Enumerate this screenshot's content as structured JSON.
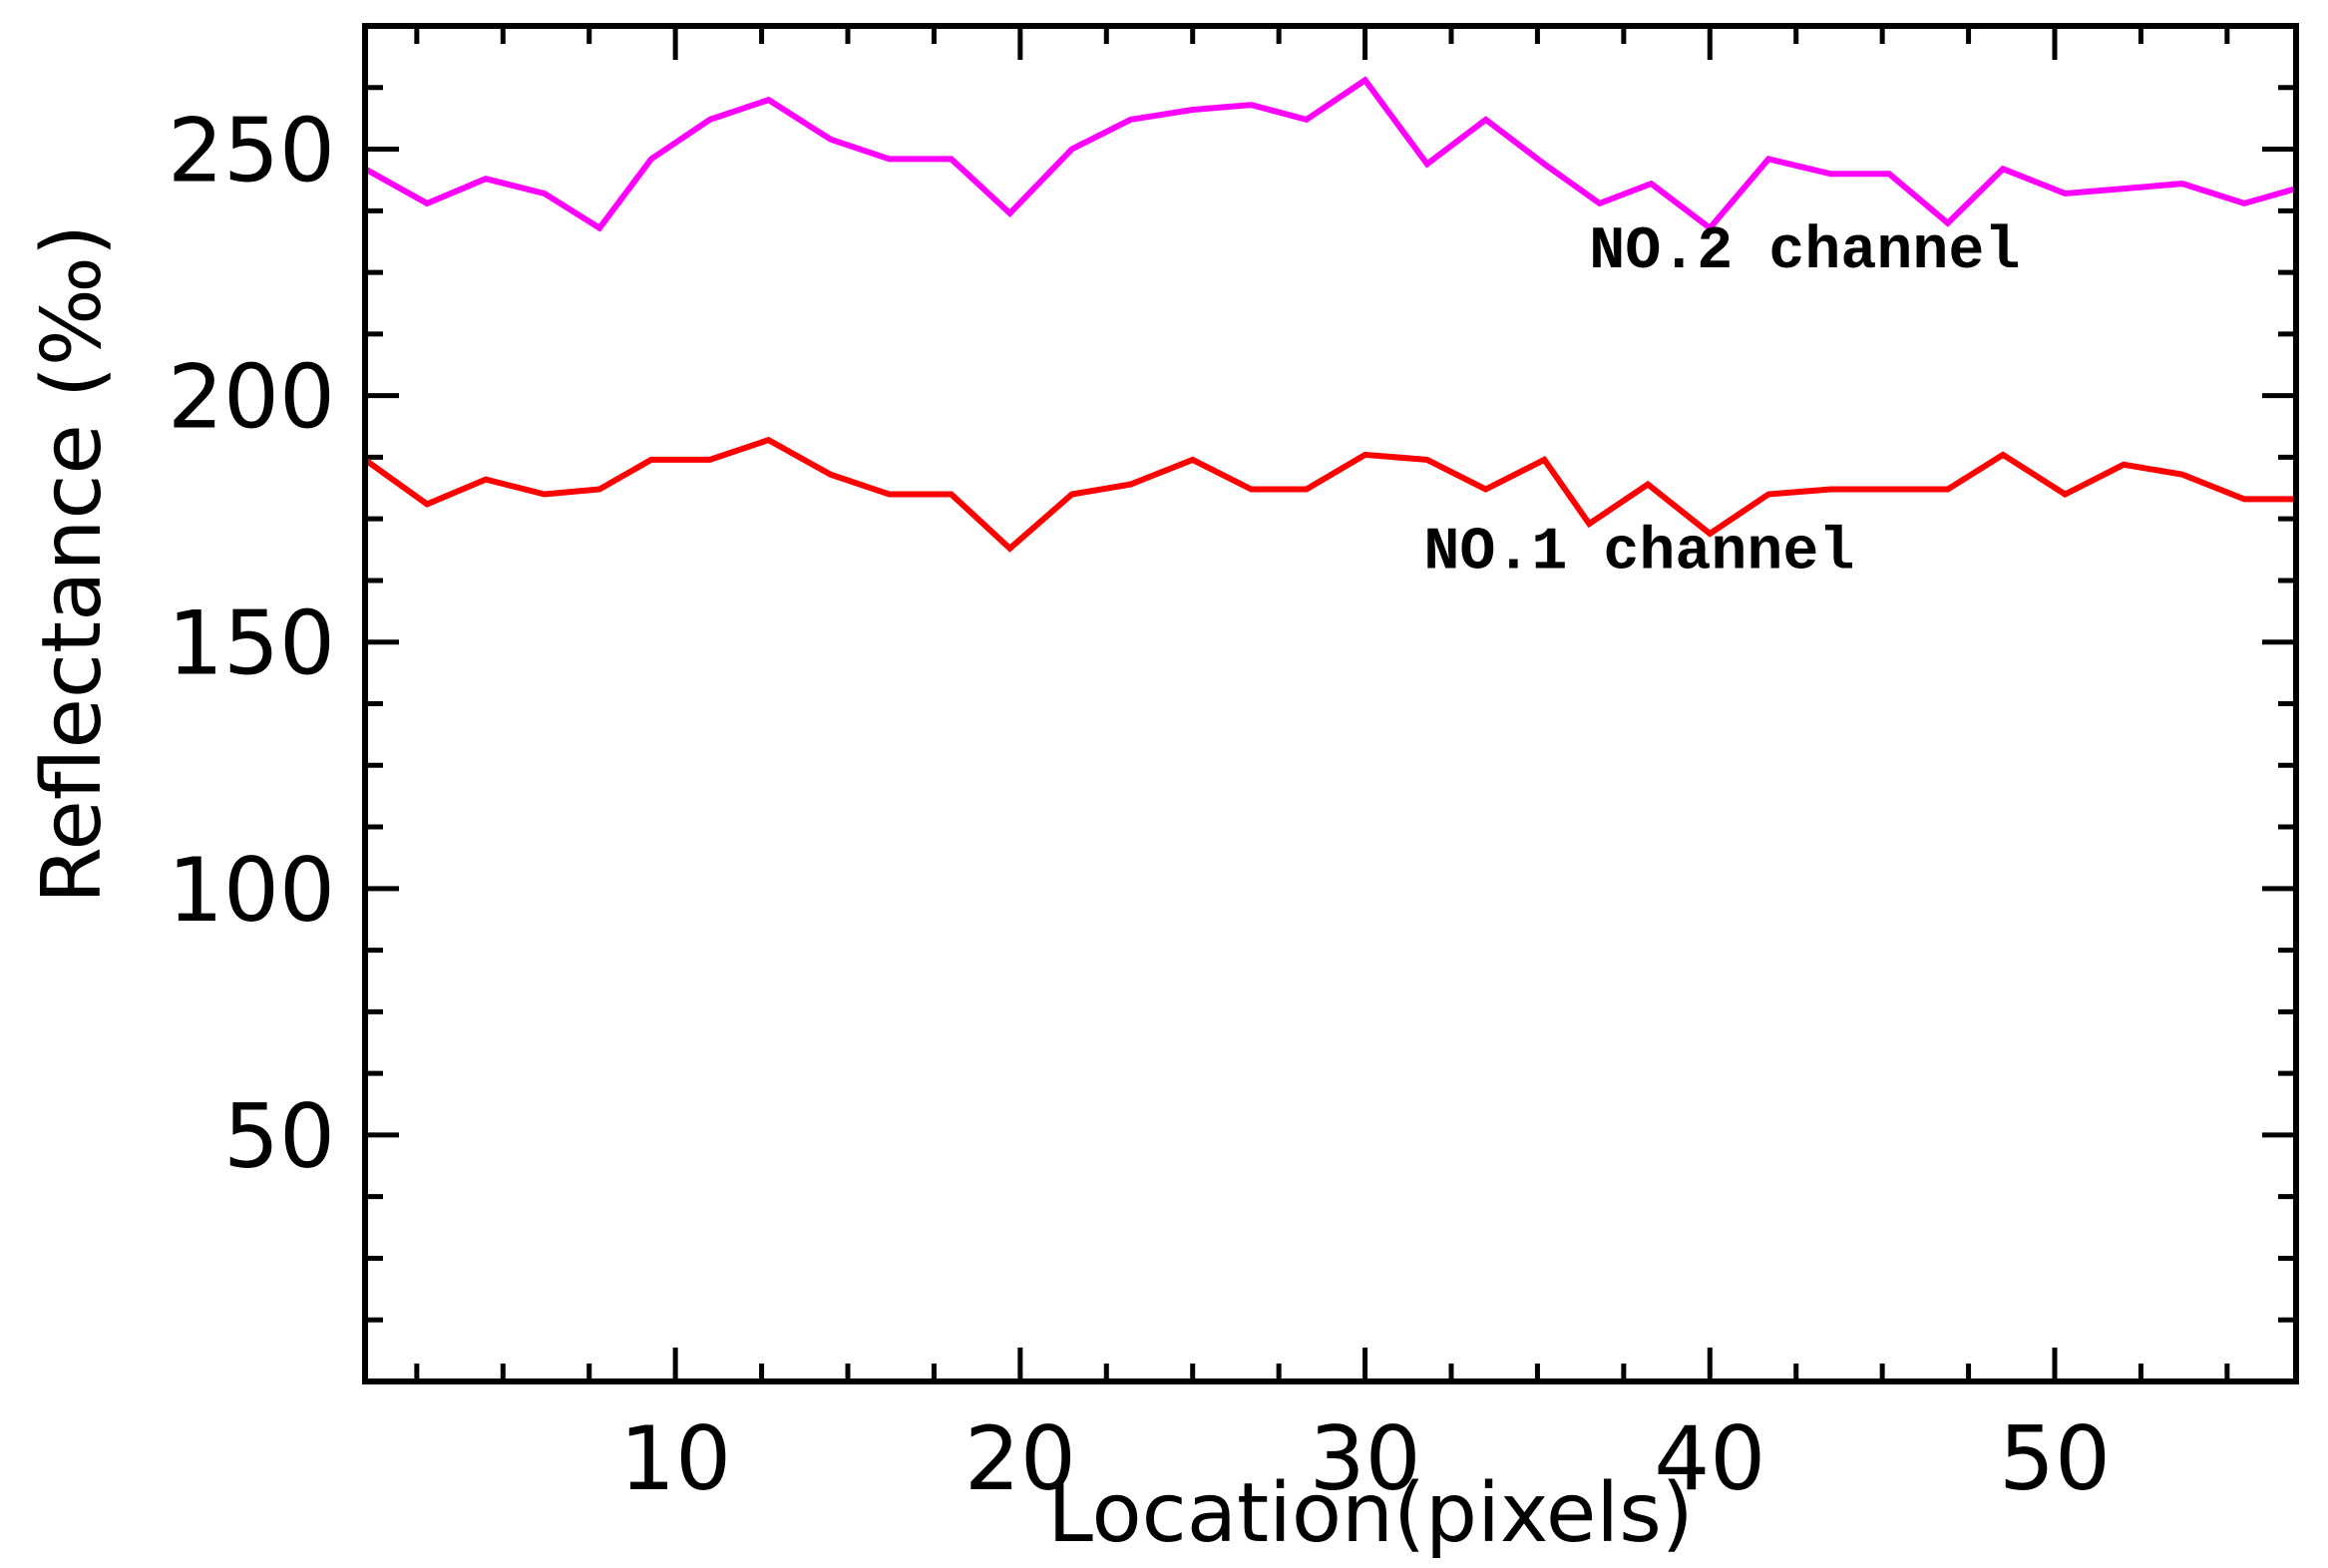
{
  "chart_data": {
    "type": "line",
    "title": "",
    "xlabel": "Location(pixels)",
    "ylabel": "Reflectance (‰)",
    "xlim": [
      1,
      57
    ],
    "ylim": [
      0,
      275
    ],
    "x_ticks": [
      10,
      20,
      30,
      40,
      50
    ],
    "y_ticks": [
      50,
      100,
      150,
      200,
      250
    ],
    "grid": false,
    "legend": "none",
    "series": [
      {
        "label": "NO.2 channel",
        "color": "#ff00ff",
        "x": [
          1,
          2.8,
          4.5,
          6.2,
          7.8,
          9.3,
          11,
          12.7,
          14.5,
          16.2,
          18,
          19.7,
          21.5,
          23.2,
          25,
          26.7,
          28.3,
          30,
          31.8,
          33.5,
          35.2,
          36.8,
          38.3,
          40,
          41.7,
          43.5,
          45.2,
          46.9,
          48.5,
          50.3,
          52,
          53.7,
          55.5,
          57
        ],
        "y": [
          246,
          239,
          244,
          241,
          234,
          248,
          256,
          260,
          252,
          248,
          248,
          237,
          250,
          256,
          258,
          259,
          256,
          264,
          247,
          256,
          247,
          239,
          243,
          234,
          248,
          245,
          245,
          235,
          246,
          241,
          242,
          243,
          239,
          242
        ]
      },
      {
        "label": "NO.1 channel",
        "color": "#ff0000",
        "x": [
          1,
          2.8,
          4.5,
          6.2,
          7.8,
          9.3,
          11,
          12.7,
          14.5,
          16.2,
          18,
          19.7,
          21.5,
          23.2,
          25,
          26.7,
          28.3,
          30,
          31.8,
          33.5,
          35.2,
          36.5,
          38.2,
          40,
          41.7,
          43.5,
          45.2,
          46.9,
          48.5,
          50.3,
          52,
          53.7,
          55.5,
          57
        ],
        "y": [
          187,
          178,
          183,
          180,
          181,
          187,
          187,
          191,
          184,
          180,
          180,
          169,
          180,
          182,
          187,
          181,
          181,
          188,
          187,
          181,
          187,
          174,
          182,
          172,
          180,
          181,
          181,
          181,
          188,
          180,
          186,
          184,
          179,
          179
        ]
      }
    ]
  }
}
